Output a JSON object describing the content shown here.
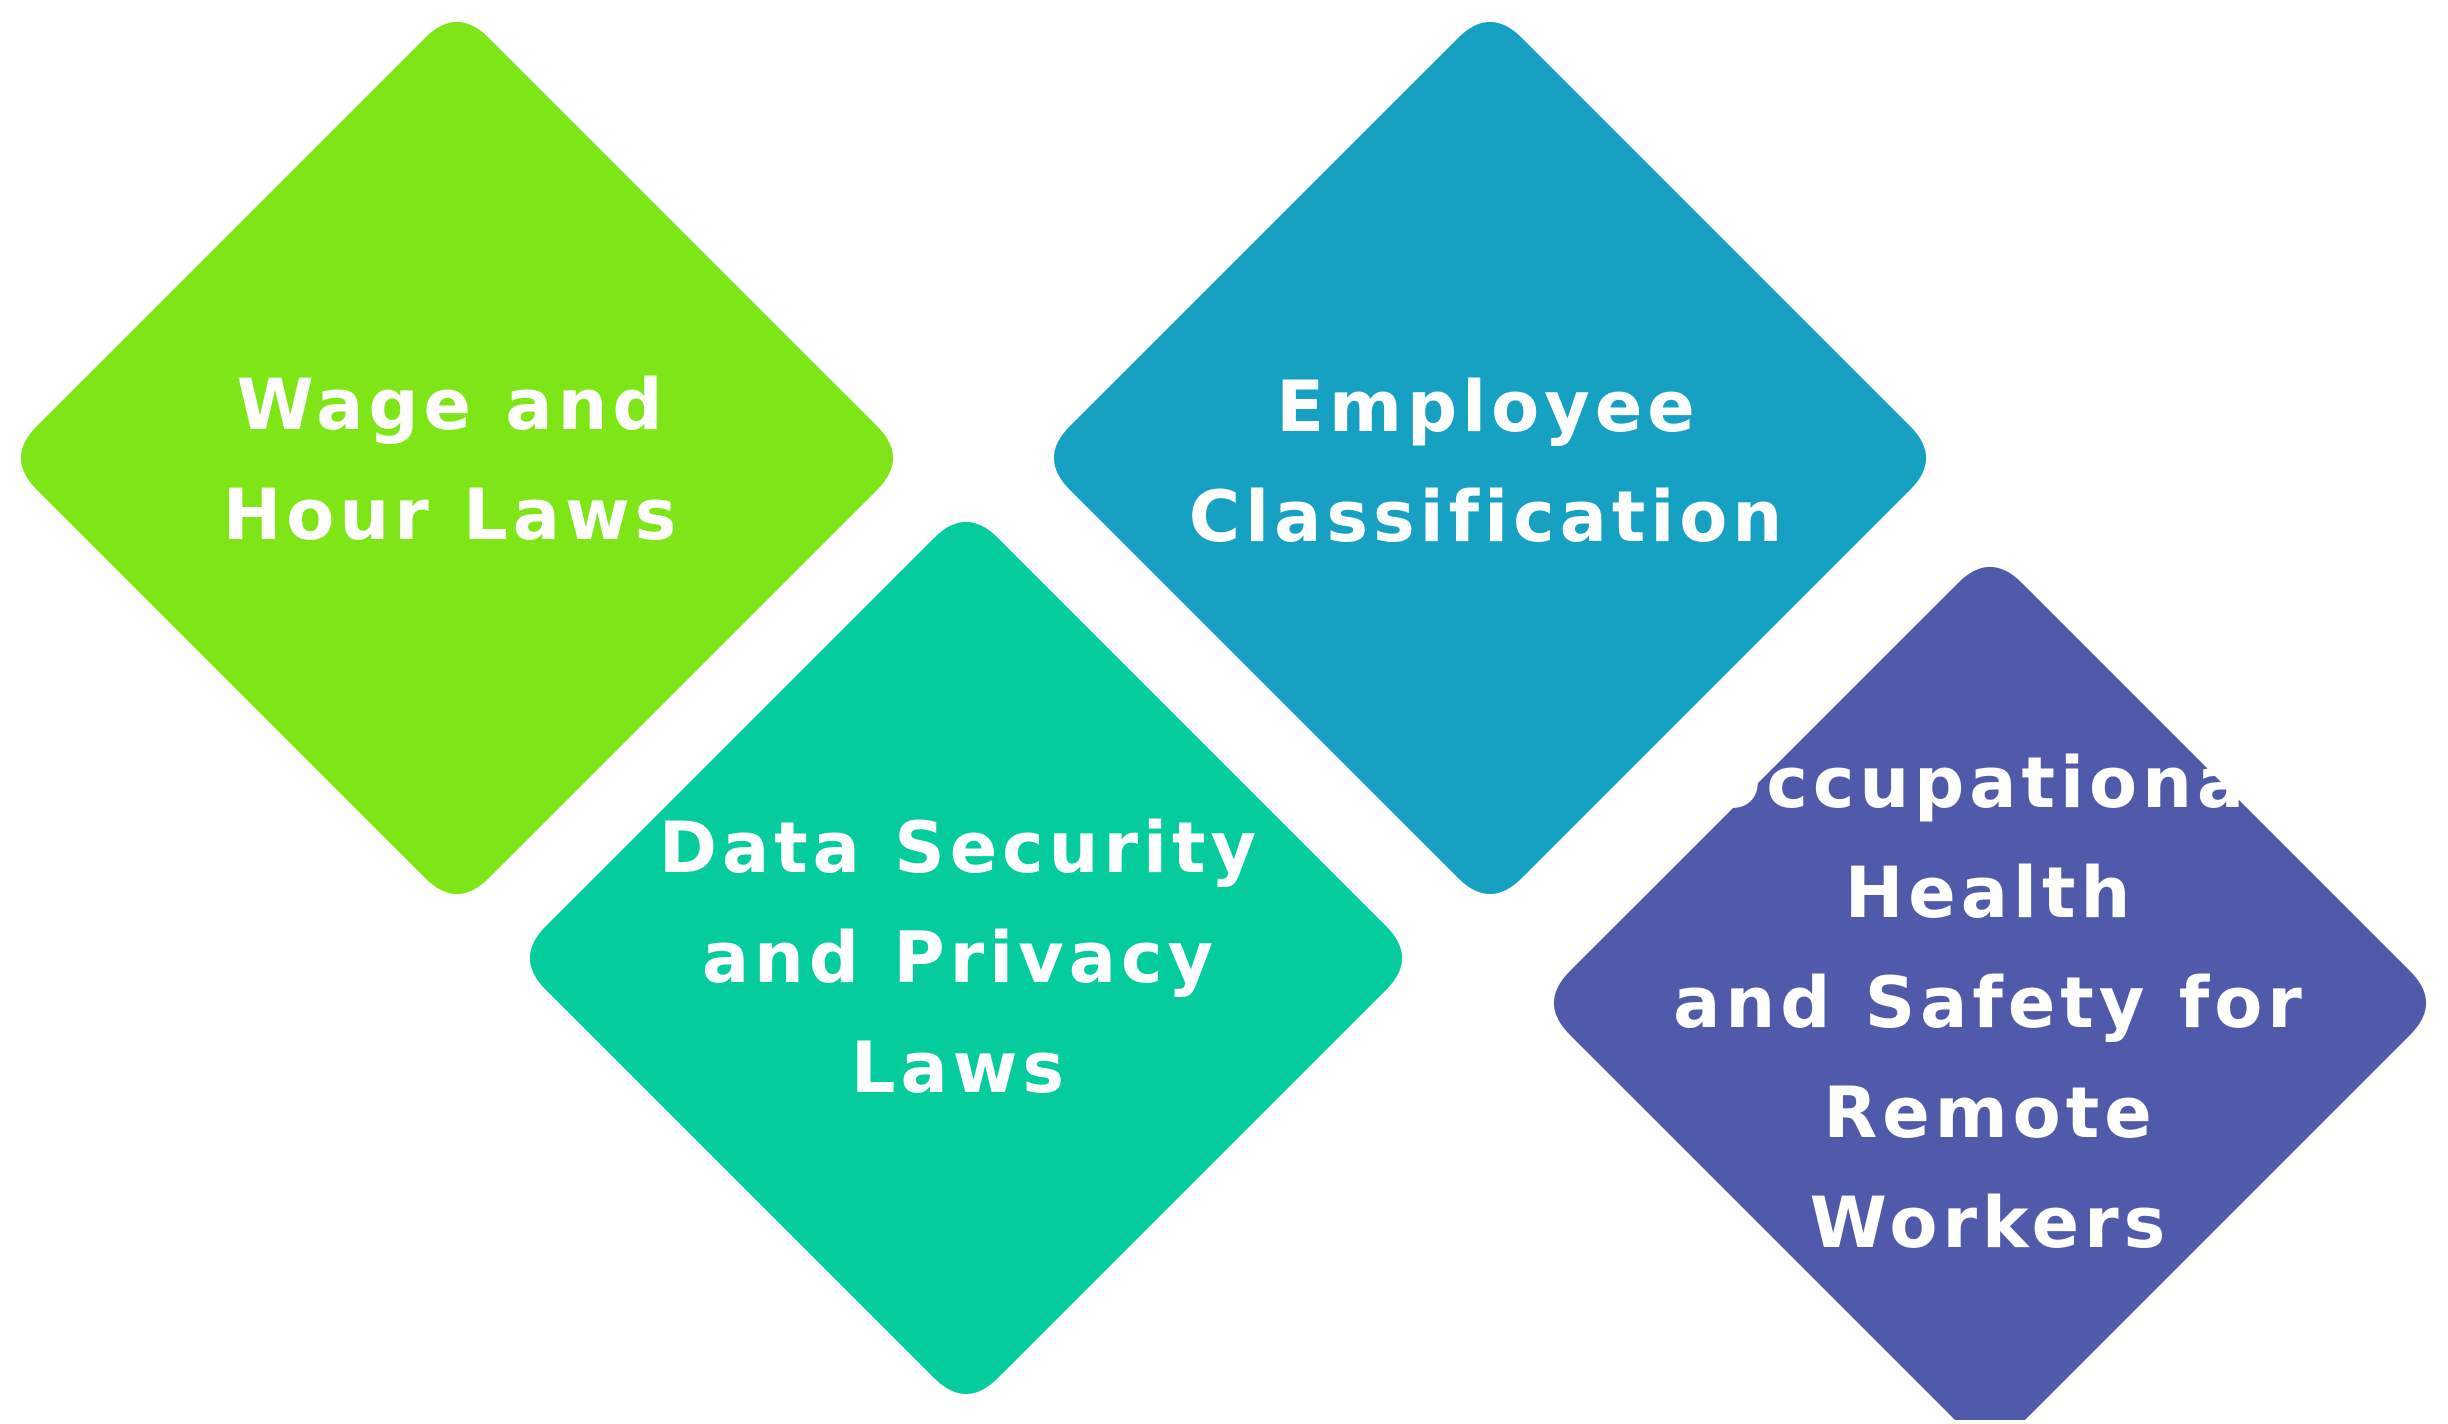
{
  "diagram": {
    "items": [
      {
        "lines": [
          "Wage and",
          "Hour Laws"
        ],
        "color": "#7EE516"
      },
      {
        "lines": [
          "Data Security",
          "and Privacy",
          "Laws"
        ],
        "color": "#04CC9C"
      },
      {
        "lines": [
          "Employee",
          "Classification"
        ],
        "color": "#16A0C2"
      },
      {
        "lines": [
          "Occupational",
          "Health",
          "and Safety for",
          "Remote",
          "Workers"
        ],
        "color": "#515AAA"
      }
    ]
  }
}
